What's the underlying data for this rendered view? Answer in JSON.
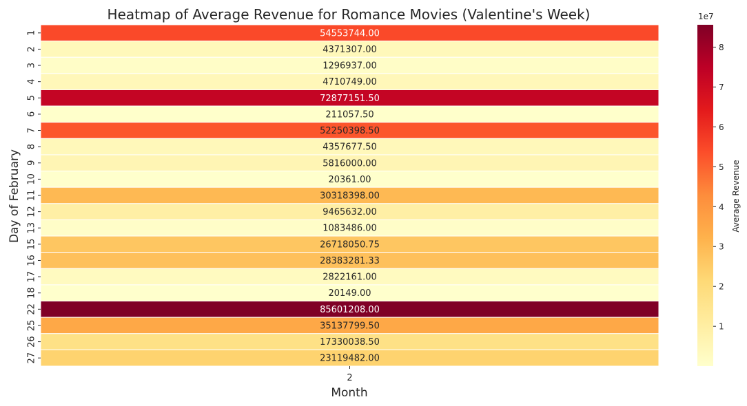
{
  "chart_data": {
    "type": "heatmap",
    "title": "Heatmap of Average Revenue for Romance Movies (Valentine's Week)",
    "xlabel": "Month",
    "ylabel": "Day of February",
    "x_categories": [
      "2"
    ],
    "y_categories": [
      "1",
      "2",
      "3",
      "4",
      "5",
      "6",
      "7",
      "8",
      "9",
      "10",
      "11",
      "12",
      "13",
      "15",
      "16",
      "17",
      "18",
      "22",
      "25",
      "26",
      "27"
    ],
    "values": [
      54553744.0,
      4371307.0,
      1296937.0,
      4710749.0,
      72877151.5,
      211057.5,
      52250398.5,
      4357677.5,
      5816000.0,
      20361.0,
      30318398.0,
      9465632.0,
      1083486.0,
      26718050.75,
      28383281.33,
      2822161.0,
      20149.0,
      85601208.0,
      35137799.5,
      17330038.5,
      23119482.0
    ],
    "value_labels": [
      "54553744.00",
      "4371307.00",
      "1296937.00",
      "4710749.00",
      "72877151.50",
      "211057.50",
      "52250398.50",
      "4357677.50",
      "5816000.00",
      "20361.00",
      "30318398.00",
      "9465632.00",
      "1083486.00",
      "26718050.75",
      "28383281.33",
      "2822161.00",
      "20149.00",
      "85601208.00",
      "35137799.50",
      "17330038.50",
      "23119482.00"
    ],
    "colormap": "YlOrRd",
    "colorbar": {
      "label": "Average Revenue",
      "exponent_label": "1e7",
      "ticks": [
        1,
        2,
        3,
        4,
        5,
        6,
        7,
        8
      ],
      "tick_labels": [
        "1",
        "2",
        "3",
        "4",
        "5",
        "6",
        "7",
        "8"
      ],
      "scale": 10000000,
      "range": [
        20149.0,
        85601208.0
      ]
    }
  }
}
